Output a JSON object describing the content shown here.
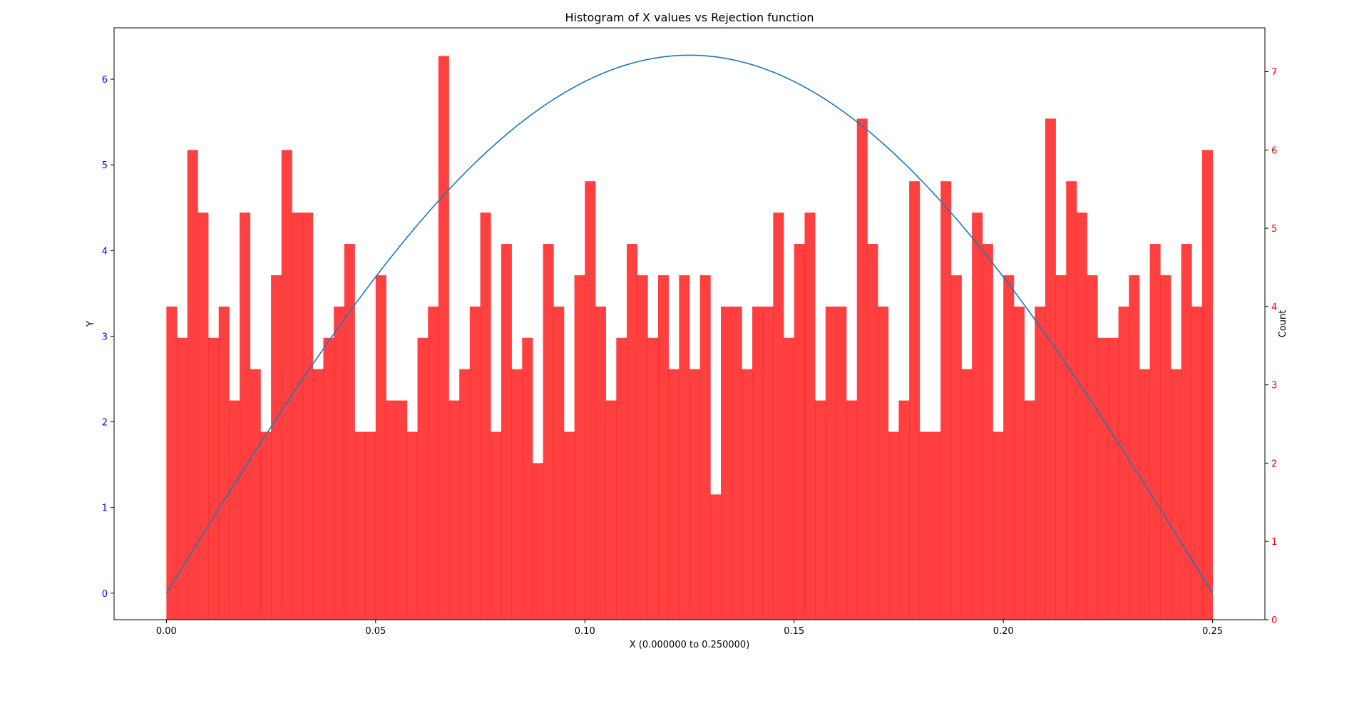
{
  "chart_data": {
    "type": "bar",
    "title": "Histogram of X values vs Rejection function",
    "xlabel": "X (0.000000 to 0.250000)",
    "ylabel_left": "Y",
    "ylabel_right": "Count",
    "xlim": [
      -0.0125,
      0.2625
    ],
    "ylim_left": [
      -0.31,
      6.6
    ],
    "ylim_right": [
      0,
      7.56
    ],
    "x_ticks": [
      "0.00",
      "0.05",
      "0.10",
      "0.15",
      "0.20",
      "0.25"
    ],
    "y_ticks_left": [
      "0",
      "1",
      "2",
      "3",
      "4",
      "5",
      "6"
    ],
    "y_ticks_right": [
      "0",
      "1",
      "2",
      "3",
      "4",
      "5",
      "6",
      "7"
    ],
    "grid": false,
    "colors": {
      "histogram": "#ff0000",
      "histogram_alpha": 0.75,
      "curve": "#1f77b4",
      "left_axis_ticks": "#0000ff",
      "right_axis_ticks": "#ff0000"
    },
    "series": [
      {
        "type": "histogram",
        "axis": "right",
        "bin_range": [
          0,
          0.25
        ],
        "bin_count": 100,
        "values": [
          4,
          3.6,
          6,
          5.2,
          3.6,
          4,
          2.8,
          5.2,
          3.2,
          2.4,
          4.4,
          6,
          5.2,
          5.2,
          3.2,
          3.6,
          4,
          4.8,
          2.4,
          2.4,
          4.4,
          2.8,
          2.8,
          2.4,
          3.6,
          4,
          7.2,
          2.8,
          3.2,
          4,
          5.2,
          2.4,
          4.8,
          3.2,
          3.6,
          2,
          4.8,
          4,
          2.4,
          4.4,
          5.6,
          4,
          2.8,
          3.6,
          4.8,
          4.4,
          3.6,
          4.4,
          3.2,
          4.4,
          3.2,
          4.4,
          1.6,
          4,
          4,
          3.2,
          4,
          4,
          5.2,
          3.6,
          4.8,
          5.2,
          2.8,
          4,
          4,
          2.8,
          6.4,
          4.8,
          4,
          2.4,
          2.8,
          5.6,
          2.4,
          2.4,
          5.6,
          4.4,
          3.2,
          5.2,
          4.8,
          2.4,
          4.4,
          4,
          2.8,
          4,
          6.4,
          4.4,
          5.6,
          5.2,
          4.4,
          3.6,
          3.6,
          4,
          4.4,
          3.2,
          4.8,
          4.4,
          3.2,
          4.8,
          4,
          6
        ]
      },
      {
        "type": "line",
        "axis": "left",
        "function": "6.28*sin(4*pi*x)",
        "x_range": [
          0,
          0.25
        ]
      }
    ]
  }
}
